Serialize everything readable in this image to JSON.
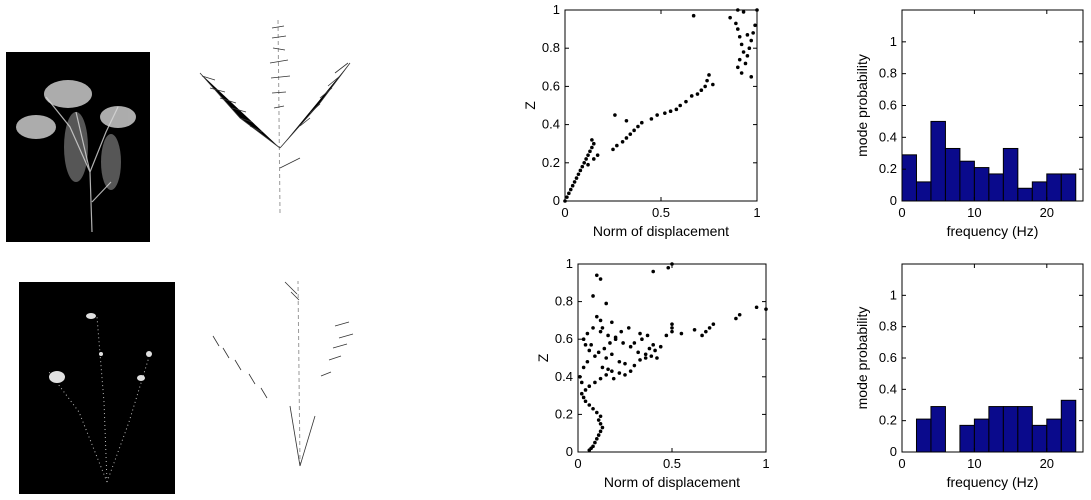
{
  "colors": {
    "bar_fill": "#0a0a8c",
    "bar_stroke": "#000000",
    "points": "#000000",
    "photo_bg": "#000000"
  },
  "chart_data": [
    {
      "id": "scatter-top",
      "type": "scatter",
      "xlabel": "Norm of displacement",
      "ylabel": "Z",
      "xlim": [
        0,
        1
      ],
      "ylim": [
        0,
        1
      ],
      "xticks": [
        "0",
        "0.5",
        "1"
      ],
      "yticks": [
        "0",
        "0.2",
        "0.4",
        "0.6",
        "0.8",
        "1"
      ],
      "points": [
        [
          0.0,
          0.0
        ],
        [
          0.01,
          0.02
        ],
        [
          0.02,
          0.04
        ],
        [
          0.03,
          0.06
        ],
        [
          0.04,
          0.08
        ],
        [
          0.05,
          0.1
        ],
        [
          0.06,
          0.12
        ],
        [
          0.07,
          0.14
        ],
        [
          0.08,
          0.16
        ],
        [
          0.09,
          0.18
        ],
        [
          0.1,
          0.2
        ],
        [
          0.11,
          0.22
        ],
        [
          0.12,
          0.24
        ],
        [
          0.13,
          0.26
        ],
        [
          0.14,
          0.28
        ],
        [
          0.15,
          0.3
        ],
        [
          0.14,
          0.32
        ],
        [
          0.12,
          0.19
        ],
        [
          0.15,
          0.22
        ],
        [
          0.17,
          0.24
        ],
        [
          0.25,
          0.27
        ],
        [
          0.27,
          0.29
        ],
        [
          0.3,
          0.31
        ],
        [
          0.32,
          0.33
        ],
        [
          0.34,
          0.35
        ],
        [
          0.36,
          0.37
        ],
        [
          0.38,
          0.39
        ],
        [
          0.4,
          0.41
        ],
        [
          0.45,
          0.43
        ],
        [
          0.48,
          0.45
        ],
        [
          0.52,
          0.46
        ],
        [
          0.55,
          0.47
        ],
        [
          0.58,
          0.48
        ],
        [
          0.6,
          0.5
        ],
        [
          0.63,
          0.52
        ],
        [
          0.66,
          0.55
        ],
        [
          0.69,
          0.56
        ],
        [
          0.71,
          0.58
        ],
        [
          0.73,
          0.6
        ],
        [
          0.74,
          0.63
        ],
        [
          0.75,
          0.66
        ],
        [
          0.77,
          0.61
        ],
        [
          0.26,
          0.45
        ],
        [
          0.32,
          0.42
        ],
        [
          0.86,
          0.96
        ],
        [
          0.89,
          0.93
        ],
        [
          0.9,
          0.9
        ],
        [
          0.91,
          0.86
        ],
        [
          0.92,
          0.82
        ],
        [
          0.93,
          0.78
        ],
        [
          0.91,
          0.74
        ],
        [
          0.9,
          0.7
        ],
        [
          0.92,
          0.67
        ],
        [
          0.94,
          0.72
        ],
        [
          0.95,
          0.76
        ],
        [
          0.96,
          0.8
        ],
        [
          0.97,
          0.84
        ],
        [
          0.98,
          0.88
        ],
        [
          0.99,
          0.92
        ],
        [
          1.0,
          1.0
        ],
        [
          0.93,
          0.99
        ],
        [
          0.9,
          1.0
        ],
        [
          0.67,
          0.97
        ],
        [
          0.95,
          0.87
        ],
        [
          0.97,
          0.65
        ]
      ]
    },
    {
      "id": "hist-top",
      "type": "bar",
      "xlabel": "frequency (Hz)",
      "ylabel": "mode probability",
      "xlim": [
        0,
        25
      ],
      "ylim": [
        0,
        1.2
      ],
      "xticks": [
        "0",
        "10",
        "20"
      ],
      "yticks": [
        "0",
        "0.2",
        "0.4",
        "0.6",
        "0.8",
        "1"
      ],
      "bin_width": 2,
      "bin_centers": [
        1,
        3,
        5,
        7,
        9,
        11,
        13,
        15,
        17,
        19,
        21,
        23
      ],
      "values": [
        0.29,
        0.12,
        0.5,
        0.33,
        0.25,
        0.21,
        0.17,
        0.33,
        0.08,
        0.12,
        0.17,
        0.17
      ]
    },
    {
      "id": "scatter-bottom",
      "type": "scatter",
      "xlabel": "Norm of displacement",
      "ylabel": "Z",
      "xlim": [
        0,
        1
      ],
      "ylim": [
        0,
        1
      ],
      "xticks": [
        "0",
        "0.5",
        "1"
      ],
      "yticks": [
        "0",
        "0.2",
        "0.4",
        "0.6",
        "0.8",
        "1"
      ],
      "points": [
        [
          0.06,
          0.01
        ],
        [
          0.07,
          0.02
        ],
        [
          0.08,
          0.03
        ],
        [
          0.09,
          0.05
        ],
        [
          0.1,
          0.07
        ],
        [
          0.11,
          0.09
        ],
        [
          0.12,
          0.11
        ],
        [
          0.13,
          0.13
        ],
        [
          0.12,
          0.15
        ],
        [
          0.11,
          0.17
        ],
        [
          0.12,
          0.19
        ],
        [
          0.1,
          0.21
        ],
        [
          0.08,
          0.23
        ],
        [
          0.06,
          0.25
        ],
        [
          0.04,
          0.27
        ],
        [
          0.03,
          0.29
        ],
        [
          0.02,
          0.31
        ],
        [
          0.04,
          0.33
        ],
        [
          0.06,
          0.35
        ],
        [
          0.09,
          0.37
        ],
        [
          0.12,
          0.39
        ],
        [
          0.15,
          0.41
        ],
        [
          0.18,
          0.43
        ],
        [
          0.22,
          0.42
        ],
        [
          0.25,
          0.41
        ],
        [
          0.28,
          0.43
        ],
        [
          0.3,
          0.46
        ],
        [
          0.33,
          0.49
        ],
        [
          0.36,
          0.52
        ],
        [
          0.38,
          0.55
        ],
        [
          0.4,
          0.57
        ],
        [
          0.41,
          0.54
        ],
        [
          0.39,
          0.51
        ],
        [
          0.36,
          0.5
        ],
        [
          0.32,
          0.53
        ],
        [
          0.28,
          0.56
        ],
        [
          0.24,
          0.58
        ],
        [
          0.2,
          0.6
        ],
        [
          0.16,
          0.62
        ],
        [
          0.12,
          0.64
        ],
        [
          0.08,
          0.66
        ],
        [
          0.05,
          0.63
        ],
        [
          0.03,
          0.6
        ],
        [
          0.04,
          0.57
        ],
        [
          0.06,
          0.54
        ],
        [
          0.09,
          0.51
        ],
        [
          0.11,
          0.53
        ],
        [
          0.14,
          0.55
        ],
        [
          0.17,
          0.58
        ],
        [
          0.2,
          0.61
        ],
        [
          0.23,
          0.64
        ],
        [
          0.12,
          0.7
        ],
        [
          0.1,
          0.72
        ],
        [
          0.13,
          0.66
        ],
        [
          0.15,
          0.5
        ],
        [
          0.18,
          0.52
        ],
        [
          0.22,
          0.48
        ],
        [
          0.25,
          0.47
        ],
        [
          0.3,
          0.58
        ],
        [
          0.34,
          0.6
        ],
        [
          0.37,
          0.62
        ],
        [
          0.44,
          0.56
        ],
        [
          0.47,
          0.62
        ],
        [
          0.5,
          0.64
        ],
        [
          0.5,
          0.66
        ],
        [
          0.5,
          0.68
        ],
        [
          0.48,
          0.98
        ],
        [
          0.5,
          1.0
        ],
        [
          0.4,
          0.96
        ],
        [
          0.1,
          0.94
        ],
        [
          0.12,
          0.92
        ],
        [
          0.66,
          0.62
        ],
        [
          0.68,
          0.64
        ],
        [
          0.7,
          0.66
        ],
        [
          0.72,
          0.68
        ],
        [
          0.84,
          0.71
        ],
        [
          0.86,
          0.73
        ],
        [
          0.95,
          0.77
        ],
        [
          1.0,
          0.76
        ],
        [
          0.55,
          0.63
        ],
        [
          0.62,
          0.65
        ],
        [
          0.08,
          0.83
        ],
        [
          0.15,
          0.79
        ],
        [
          0.18,
          0.69
        ],
        [
          0.27,
          0.66
        ],
        [
          0.33,
          0.63
        ],
        [
          0.42,
          0.5
        ],
        [
          0.03,
          0.45
        ],
        [
          0.01,
          0.4
        ],
        [
          0.02,
          0.37
        ],
        [
          0.05,
          0.48
        ],
        [
          0.07,
          0.57
        ],
        [
          0.13,
          0.45
        ],
        [
          0.16,
          0.44
        ],
        [
          0.19,
          0.39
        ]
      ]
    },
    {
      "id": "hist-bottom",
      "type": "bar",
      "xlabel": "frequency (Hz)",
      "ylabel": "mode probability",
      "xlim": [
        0,
        25
      ],
      "ylim": [
        0,
        1.2
      ],
      "xticks": [
        "0",
        "10",
        "20"
      ],
      "yticks": [
        "0",
        "0.2",
        "0.4",
        "0.6",
        "0.8",
        "1"
      ],
      "bin_width": 2,
      "bin_centers": [
        1,
        3,
        5,
        7,
        9,
        11,
        13,
        15,
        17,
        19,
        21,
        23
      ],
      "values": [
        0,
        0.21,
        0.29,
        0,
        0.17,
        0.21,
        0.29,
        0.29,
        0.29,
        0.17,
        0.21,
        0.33
      ]
    }
  ]
}
